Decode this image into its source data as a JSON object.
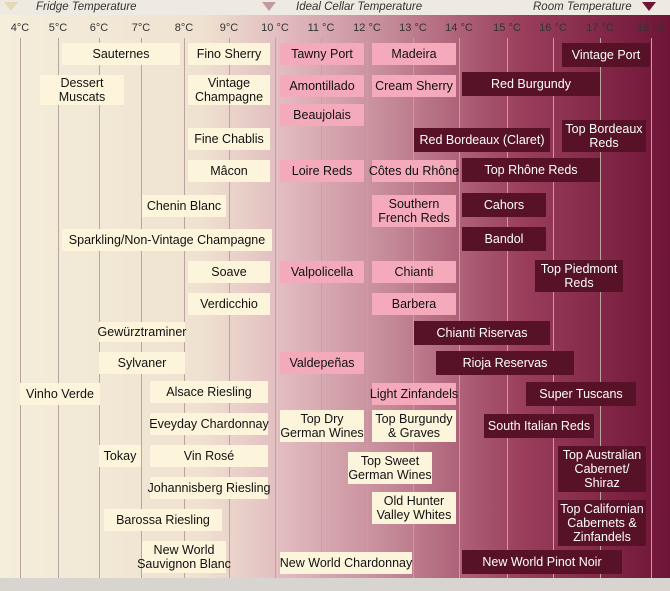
{
  "header": {
    "fridge": "Fridge Temperature",
    "cellar": "Ideal Cellar Temperature",
    "room": "Room Temperature"
  },
  "temperatures": [
    "4°C",
    "5°C",
    "6°C",
    "7°C",
    "8°C",
    "9°C",
    "10 °C",
    "11 °C",
    "12 °C",
    "13 °C",
    "14 °C",
    "15 °C",
    "16 °C",
    "17 °C",
    "18 °C"
  ],
  "wines": [
    {
      "lines": [
        "Sauternes"
      ]
    },
    {
      "lines": [
        "Fino Sherry"
      ]
    },
    {
      "lines": [
        "Tawny Port"
      ]
    },
    {
      "lines": [
        "Madeira"
      ]
    },
    {
      "lines": [
        "Vintage Port"
      ]
    },
    {
      "lines": [
        "Dessert",
        "Muscats"
      ]
    },
    {
      "lines": [
        "Vintage",
        "Champagne"
      ]
    },
    {
      "lines": [
        "Amontillado"
      ]
    },
    {
      "lines": [
        "Cream Sherry"
      ]
    },
    {
      "lines": [
        "Red Burgundy"
      ]
    },
    {
      "lines": [
        "Beaujolais"
      ]
    },
    {
      "lines": [
        "Fine Chablis"
      ]
    },
    {
      "lines": [
        "Red Bordeaux (Claret)"
      ]
    },
    {
      "lines": [
        "Top Bordeaux",
        "Reds"
      ]
    },
    {
      "lines": [
        "Mâcon"
      ]
    },
    {
      "lines": [
        "Loire Reds"
      ]
    },
    {
      "lines": [
        "Côtes du Rhône"
      ]
    },
    {
      "lines": [
        "Top Rhône Reds"
      ]
    },
    {
      "lines": [
        "Chenin Blanc"
      ]
    },
    {
      "lines": [
        "Southern",
        "French Reds"
      ]
    },
    {
      "lines": [
        "Cahors"
      ]
    },
    {
      "lines": [
        "Sparkling/Non-Vintage Champagne"
      ]
    },
    {
      "lines": [
        "Bandol"
      ]
    },
    {
      "lines": [
        "Soave"
      ]
    },
    {
      "lines": [
        "Valpolicella"
      ]
    },
    {
      "lines": [
        "Chianti"
      ]
    },
    {
      "lines": [
        "Top Piedmont",
        "Reds"
      ]
    },
    {
      "lines": [
        "Verdicchio"
      ]
    },
    {
      "lines": [
        "Barbera"
      ]
    },
    {
      "lines": [
        "Gewürztraminer"
      ]
    },
    {
      "lines": [
        "Chianti Riservas"
      ]
    },
    {
      "lines": [
        "Sylvaner"
      ]
    },
    {
      "lines": [
        "Valdepeñas"
      ]
    },
    {
      "lines": [
        "Rioja Reservas"
      ]
    },
    {
      "lines": [
        "Vinho Verde"
      ]
    },
    {
      "lines": [
        "Alsace Riesling"
      ]
    },
    {
      "lines": [
        "Light Zinfandels"
      ]
    },
    {
      "lines": [
        "Super Tuscans"
      ]
    },
    {
      "lines": [
        "Top Dry",
        "German Wines"
      ]
    },
    {
      "lines": [
        "Top Burgundy",
        "& Graves"
      ]
    },
    {
      "lines": [
        "Eveyday Chardonnay"
      ]
    },
    {
      "lines": [
        "South Italian Reds"
      ]
    },
    {
      "lines": [
        "Tokay"
      ]
    },
    {
      "lines": [
        "Vin Rosé"
      ]
    },
    {
      "lines": [
        "Top Sweet",
        "German Wines"
      ]
    },
    {
      "lines": [
        "Top Australian",
        "Cabernet/",
        "Shiraz"
      ]
    },
    {
      "lines": [
        "Johannisberg Riesling"
      ]
    },
    {
      "lines": [
        "Old Hunter",
        "Valley Whites"
      ]
    },
    {
      "lines": [
        "Barossa Riesling"
      ]
    },
    {
      "lines": [
        "Top Californian",
        "Cabernets &",
        "Zinfandels"
      ]
    },
    {
      "lines": [
        "New World",
        "Sauvignon Blanc"
      ]
    },
    {
      "lines": [
        "New World Chardonnay"
      ]
    },
    {
      "lines": [
        "New World Pinot Noir"
      ]
    }
  ]
}
